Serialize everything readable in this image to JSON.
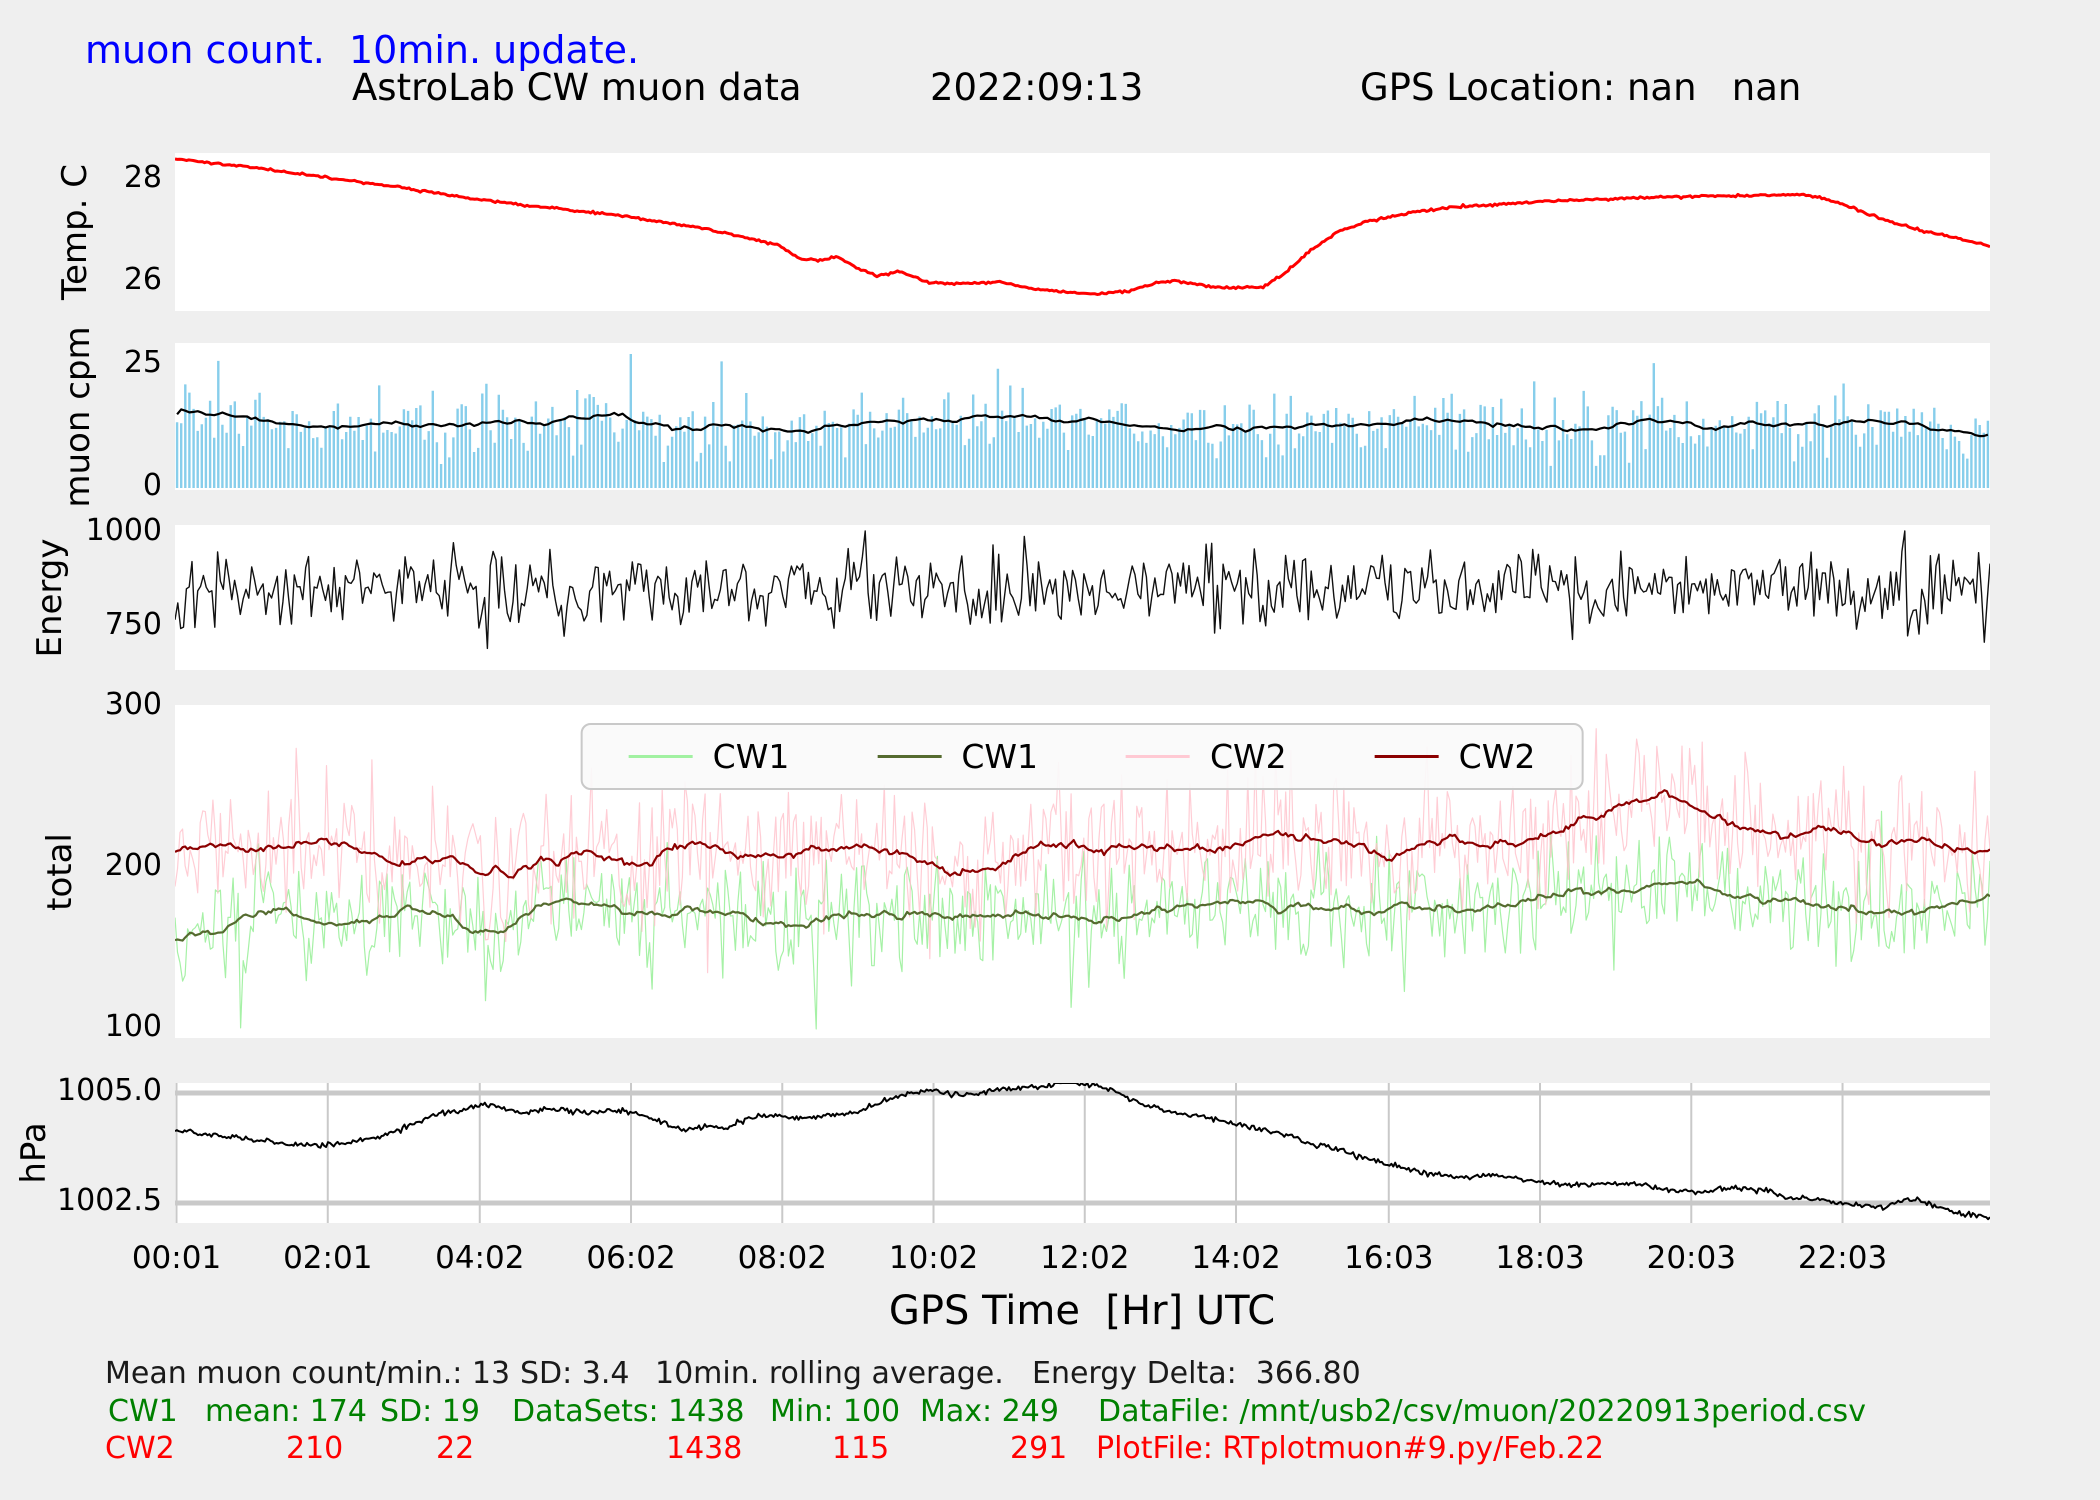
{
  "header": {
    "update_label": "muon count.  10min. update.",
    "title": "AstroLab CW muon data",
    "date": "2022:09:13",
    "gps": "GPS Location: nan   nan",
    "title_color": "#0000ff"
  },
  "xaxis": {
    "label": "GPS Time  [Hr] UTC",
    "tick_hours": [
      0.02,
      2.02,
      4.03,
      6.03,
      8.03,
      10.03,
      12.03,
      14.03,
      16.05,
      18.05,
      20.05,
      22.05
    ],
    "tick_labels": [
      "00:01",
      "02:01",
      "04:02",
      "06:02",
      "08:02",
      "10:02",
      "12:02",
      "14:02",
      "16:03",
      "18:03",
      "20:03",
      "22:03"
    ]
  },
  "footer": {
    "summary": {
      "mean": "Mean muon count/min.: 13",
      "sd": "SD: 3.4",
      "note": "10min. rolling average.",
      "energy_delta": "Energy Delta:  366.80"
    },
    "cw1": {
      "label": "CW1",
      "mean": "mean: 174",
      "sd": "SD: 19",
      "datasets": "DataSets: 1438",
      "min": "Min: 100",
      "max": "Max: 249",
      "file": "DataFile: /mnt/usb2/csv/muon/20220913period.csv"
    },
    "cw2": {
      "label": "CW2",
      "mean": "210",
      "sd": "22",
      "datasets": "1438",
      "min": "115",
      "max": "291",
      "file": "PlotFile: RTplotmuon#9.py/Feb.22"
    },
    "colors": {
      "summary": "#1a1a1a",
      "cw1": "#008000",
      "cw2": "#ff0000"
    }
  },
  "chart_data": [
    {
      "id": "temp",
      "type": "line",
      "ylabel": "Temp. C",
      "yticks": [
        [
          28,
          "28"
        ],
        [
          26,
          "26"
        ]
      ],
      "ylim": [
        25.43,
        28.53
      ],
      "xlim": [
        0,
        24
      ],
      "series": [
        {
          "name": "temperature",
          "kind": "interp",
          "color": "#ff0000",
          "width": 3,
          "points": 800,
          "noise": 0.012,
          "seed": 11,
          "control_x": [
            0,
            1,
            2,
            3,
            4,
            5,
            6,
            7,
            7.6,
            8.0,
            8.15,
            8.3,
            8.55,
            8.75,
            9.0,
            9.3,
            9.55,
            9.8,
            10.0,
            10.5,
            10.9,
            11.3,
            11.8,
            12.2,
            12.6,
            12.9,
            13.2,
            13.6,
            14.0,
            14.4,
            14.7,
            15.0,
            15.4,
            15.8,
            16.3,
            16.8,
            17.5,
            18.2,
            19.0,
            20.0,
            20.8,
            21.4,
            21.7,
            22.1,
            22.6,
            23.1,
            23.6,
            24.0
          ],
          "control_y": [
            28.42,
            28.25,
            28.05,
            27.85,
            27.62,
            27.45,
            27.28,
            27.05,
            26.85,
            26.72,
            26.55,
            26.45,
            26.42,
            26.5,
            26.28,
            26.12,
            26.2,
            26.08,
            25.98,
            25.97,
            26.0,
            25.88,
            25.8,
            25.76,
            25.82,
            25.95,
            26.03,
            25.93,
            25.88,
            25.9,
            26.2,
            26.6,
            27.0,
            27.2,
            27.35,
            27.45,
            27.53,
            27.58,
            27.63,
            27.68,
            27.7,
            27.72,
            27.68,
            27.5,
            27.22,
            27.0,
            26.85,
            26.7
          ]
        }
      ]
    },
    {
      "id": "muon",
      "type": "bar",
      "ylabel": "muon cpm",
      "yticks": [
        [
          25,
          "25"
        ],
        [
          0,
          "0"
        ]
      ],
      "ylim": [
        -0.4,
        29.5
      ],
      "xlim": [
        0,
        24
      ],
      "series": [
        {
          "name": "muon-count-bars",
          "kind": "bars",
          "color": "#87ceeb",
          "bars": 440,
          "barwidth": 2.4,
          "mean": 13,
          "sd": 3.4,
          "clamp": [
            4.5,
            27.5
          ],
          "spike_p": 0.012,
          "spike_lo": 5,
          "spike_hi": 12,
          "seed": 29
        },
        {
          "name": "muon-rolling-average",
          "kind": "rolling",
          "source": 0,
          "window": 19,
          "color": "#000000",
          "width": 2.2
        }
      ]
    },
    {
      "id": "energy",
      "type": "line",
      "ylabel": "Energy",
      "yticks": [
        [
          1000,
          "1000"
        ],
        [
          750,
          "750"
        ]
      ],
      "ylim": [
        636,
        1021
      ],
      "xlim": [
        0,
        24
      ],
      "series": [
        {
          "name": "energy",
          "kind": "gauss",
          "color": "#111111",
          "width": 1.4,
          "points": 640,
          "mean": 856,
          "sd": 52,
          "clamp": [
            645,
            1005
          ],
          "spike_p": 0.012,
          "spike_lo": -130,
          "spike_hi": -60,
          "seed": 41
        }
      ]
    },
    {
      "id": "total",
      "type": "line",
      "ylabel": "total",
      "yticks": [
        [
          300,
          "300"
        ],
        [
          200,
          "200"
        ],
        [
          100,
          "100"
        ]
      ],
      "ylim": [
        94.4,
        301.2
      ],
      "xlim": [
        0,
        24
      ],
      "legend": [
        {
          "label": "CW1",
          "color": "#90ee90",
          "opacity": 0.85
        },
        {
          "label": "CW1",
          "color": "#556b2f",
          "opacity": 1
        },
        {
          "label": "CW2",
          "color": "#ffc0cb",
          "opacity": 0.85
        },
        {
          "label": "CW2",
          "color": "#8b0000",
          "opacity": 1
        }
      ],
      "series": [
        {
          "name": "cw1-raw",
          "kind": "interp-gauss",
          "color": "#90ee90",
          "opacity": 0.8,
          "width": 1.2,
          "points": 720,
          "sd": 18,
          "clamp": [
            100,
            249
          ],
          "spike_p": 0.008,
          "spike_lo": -45,
          "spike_hi": -20,
          "seed": 53,
          "control_x": [
            0,
            0.7,
            1.1,
            1.6,
            2.2,
            2.8,
            3.4,
            4.0,
            4.15,
            4.5,
            5.0,
            5.6,
            6.2,
            7.0,
            7.8,
            8.6,
            9.4,
            10.2,
            11.0,
            11.8,
            12.6,
            13.4,
            14.2,
            15.0,
            15.8,
            16.6,
            17.4,
            18.2,
            18.8,
            19.3,
            19.7,
            20.2,
            20.8,
            21.4,
            22.0,
            22.6,
            23.2,
            23.6,
            24.0
          ],
          "control_y": [
            155,
            168,
            183,
            172,
            165,
            175,
            170,
            166,
            150,
            170,
            178,
            172,
            168,
            175,
            170,
            172,
            168,
            173,
            170,
            175,
            172,
            176,
            174,
            178,
            175,
            180,
            178,
            182,
            186,
            193,
            197,
            188,
            182,
            178,
            175,
            172,
            176,
            174,
            175
          ]
        },
        {
          "name": "cw2-raw",
          "kind": "interp-gauss",
          "color": "#ffc0cb",
          "opacity": 0.8,
          "width": 1.2,
          "points": 720,
          "sd": 21,
          "clamp": [
            115,
            291
          ],
          "spike_p": 0.008,
          "spike_lo": 25,
          "spike_hi": 55,
          "seed": 67,
          "control_x": [
            0,
            0.7,
            1.1,
            1.6,
            2.2,
            2.8,
            3.4,
            4.0,
            4.15,
            4.5,
            5.0,
            5.6,
            6.2,
            7.0,
            7.8,
            8.6,
            9.4,
            10.2,
            11.0,
            11.8,
            12.6,
            13.4,
            14.2,
            15.0,
            15.8,
            16.6,
            17.4,
            18.2,
            18.8,
            19.3,
            19.7,
            20.2,
            20.8,
            21.4,
            22.0,
            22.6,
            23.2,
            23.6,
            24.0
          ],
          "control_y": [
            205,
            212,
            206,
            210,
            215,
            208,
            204,
            210,
            172,
            206,
            212,
            208,
            206,
            210,
            205,
            212,
            208,
            205,
            210,
            214,
            208,
            212,
            210,
            215,
            212,
            218,
            215,
            220,
            228,
            240,
            252,
            238,
            228,
            220,
            214,
            208,
            212,
            206,
            200
          ]
        },
        {
          "name": "cw1-rolling",
          "kind": "rolling",
          "source": 0,
          "window": 25,
          "color": "#556b2f",
          "width": 2.2
        },
        {
          "name": "cw2-rolling",
          "kind": "rolling",
          "source": 1,
          "window": 25,
          "color": "#8b0000",
          "width": 2.2
        }
      ]
    },
    {
      "id": "hpa",
      "type": "line",
      "ylabel": "hPa",
      "grid": true,
      "grid_color": "#c9c9c9",
      "yticks": [
        [
          1005.0,
          "1005.0"
        ],
        [
          1002.5,
          "1002.5"
        ]
      ],
      "ylim": [
        1002.045,
        1005.227
      ],
      "xlim": [
        0,
        24
      ],
      "series": [
        {
          "name": "pressure",
          "kind": "interp",
          "color": "#000000",
          "width": 2,
          "points": 950,
          "noise": 0.03,
          "seed": 83,
          "control_x": [
            0,
            0.5,
            1.0,
            1.5,
            1.9,
            2.3,
            2.7,
            3.0,
            3.4,
            3.8,
            4.1,
            4.35,
            4.6,
            4.9,
            5.2,
            5.5,
            5.8,
            6.1,
            6.4,
            6.7,
            7.0,
            7.3,
            7.6,
            7.9,
            8.2,
            8.6,
            9.0,
            9.4,
            9.7,
            10.0,
            10.4,
            10.8,
            11.2,
            11.5,
            11.8,
            12.1,
            12.4,
            12.8,
            13.2,
            13.6,
            14.0,
            14.5,
            15.0,
            15.5,
            16.0,
            16.5,
            17.0,
            17.4,
            17.8,
            18.2,
            18.6,
            19.0,
            19.4,
            19.8,
            20.2,
            20.6,
            21.0,
            21.4,
            21.8,
            22.2,
            22.6,
            22.9,
            23.2,
            23.6,
            24.0
          ],
          "control_y": [
            1004.15,
            1004.05,
            1003.95,
            1003.85,
            1003.8,
            1003.85,
            1004.0,
            1004.2,
            1004.5,
            1004.6,
            1004.75,
            1004.65,
            1004.55,
            1004.65,
            1004.6,
            1004.55,
            1004.62,
            1004.55,
            1004.35,
            1004.15,
            1004.25,
            1004.2,
            1004.45,
            1004.5,
            1004.42,
            1004.48,
            1004.55,
            1004.85,
            1005.0,
            1005.05,
            1004.95,
            1005.05,
            1005.1,
            1005.15,
            1005.28,
            1005.2,
            1005.05,
            1004.75,
            1004.55,
            1004.45,
            1004.3,
            1004.15,
            1003.85,
            1003.65,
            1003.4,
            1003.2,
            1003.1,
            1003.15,
            1003.05,
            1002.95,
            1002.9,
            1002.95,
            1002.9,
            1002.8,
            1002.75,
            1002.85,
            1002.8,
            1002.6,
            1002.55,
            1002.45,
            1002.4,
            1002.6,
            1002.5,
            1002.25,
            1002.15
          ]
        }
      ]
    }
  ]
}
